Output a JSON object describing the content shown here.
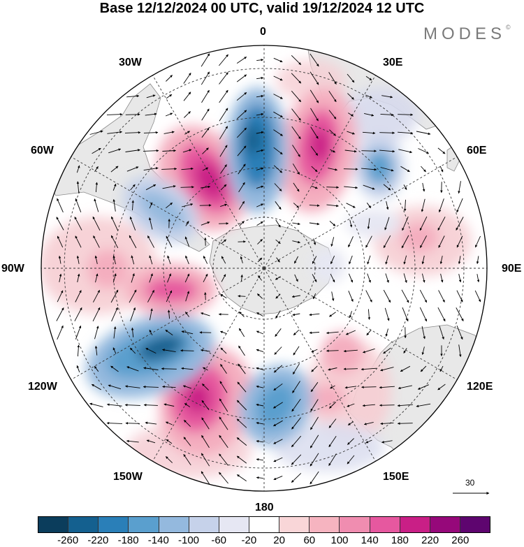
{
  "title": "Base 12/12/2024 00 UTC, valid 19/12/2024 12 UTC",
  "brand": "MODES",
  "brand_mark": "©",
  "longitude_labels": {
    "lon_0": "0",
    "lon_30e": "30E",
    "lon_60e": "60E",
    "lon_90e": "90E",
    "lon_120e": "120E",
    "lon_150e": "150E",
    "lon_180": "180",
    "lon_150w": "150W",
    "lon_120w": "120W",
    "lon_90w": "90W",
    "lon_60w": "60W",
    "lon_30w": "30W"
  },
  "vector_scale_label": "30",
  "colorbar": {
    "colors": [
      "#0b3d5c",
      "#14608f",
      "#2a7fb8",
      "#5a9fce",
      "#94b9de",
      "#c6d2ea",
      "#e6e7f3",
      "#ffffff",
      "#f9d6d8",
      "#f6b4c0",
      "#f08db0",
      "#e6589f",
      "#c91f86",
      "#96087a",
      "#5e056f"
    ],
    "ticks": [
      "-260",
      "-220",
      "-180",
      "-140",
      "-100",
      "-60",
      "-20",
      "20",
      "60",
      "100",
      "140",
      "180",
      "220",
      "260"
    ]
  },
  "colors": {
    "land": "#e8e8e8",
    "coast": "#8a8a8a",
    "graticule": "#333333",
    "frame": "#000000"
  }
}
